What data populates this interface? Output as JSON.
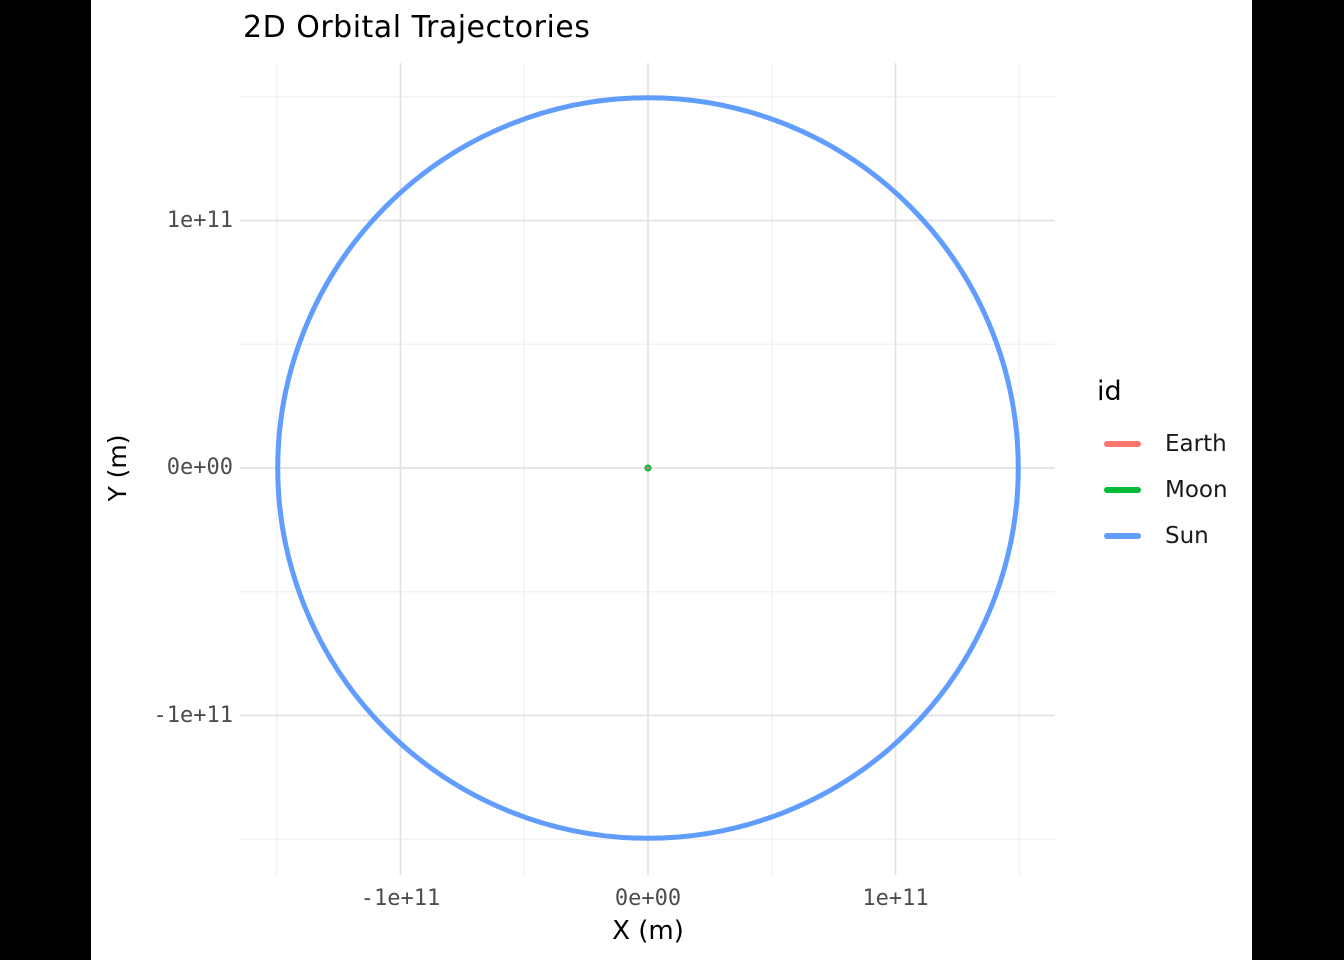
{
  "title": "2D Orbital Trajectories",
  "axes": {
    "x": {
      "label": "X (m)",
      "ticks": [
        {
          "label": "-1e+11",
          "value": -100000000000.0
        },
        {
          "label": "0e+00",
          "value": 0
        },
        {
          "label": "1e+11",
          "value": 100000000000.0
        }
      ]
    },
    "y": {
      "label": "Y (m)",
      "ticks": [
        {
          "label": "1e+11",
          "value": 100000000000.0
        },
        {
          "label": "0e+00",
          "value": 0
        },
        {
          "label": "-1e+11",
          "value": -100000000000.0
        }
      ]
    }
  },
  "legend": {
    "title": "id",
    "items": [
      {
        "label": "Earth",
        "color": "#F8766D"
      },
      {
        "label": "Moon",
        "color": "#00BA38"
      },
      {
        "label": "Sun",
        "color": "#619CFF"
      }
    ]
  },
  "chart_data": {
    "type": "line",
    "title": "2D Orbital Trajectories",
    "xlabel": "X (m)",
    "ylabel": "Y (m)",
    "xlim": [
      -165000000000.0,
      165000000000.0
    ],
    "ylim": [
      -165000000000.0,
      165000000000.0
    ],
    "grid": {
      "major_x": [
        -100000000000.0,
        0,
        100000000000.0
      ],
      "major_y": [
        -100000000000.0,
        0,
        100000000000.0
      ],
      "minor_x": [
        -150000000000.0,
        -50000000000.0,
        50000000000.0,
        150000000000.0
      ],
      "minor_y": [
        -150000000000.0,
        -50000000000.0,
        50000000000.0,
        150000000000.0
      ],
      "major_color": "#e3e3e3",
      "minor_color": "#efefef"
    },
    "legend_position": "right",
    "series": [
      {
        "name": "Earth",
        "color": "#F8766D",
        "geometry": "point",
        "center": [
          0,
          0
        ],
        "orbit_radius_m": 0,
        "note": "point at origin, hidden beneath Moon orbit"
      },
      {
        "name": "Moon",
        "color": "#00BA38",
        "geometry": "circular-orbit",
        "center": [
          0,
          0
        ],
        "orbit_radius_m": 384000000.0,
        "note": "tiny orbit, appears as green dot at origin"
      },
      {
        "name": "Sun",
        "color": "#619CFF",
        "geometry": "circular-orbit",
        "center": [
          0,
          0
        ],
        "orbit_radius_m": 149600000000.0,
        "note": "large circular trajectory of radius ~1 AU"
      }
    ]
  }
}
